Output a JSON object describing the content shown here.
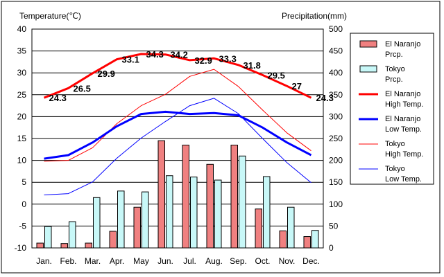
{
  "chart_data": {
    "type": "bar+line",
    "categories": [
      "Jan.",
      "Feb.",
      "Mar.",
      "Apr.",
      "May",
      "Jun.",
      "Jul.",
      "Aug.",
      "Sep.",
      "Oct.",
      "Nov.",
      "Dec."
    ],
    "left_axis": {
      "label": "Temperature(℃)",
      "range": [
        -10,
        40
      ],
      "ticks": [
        -10,
        -5,
        0,
        5,
        10,
        15,
        20,
        25,
        30,
        35,
        40
      ]
    },
    "right_axis": {
      "label": "Precipitation(mm)",
      "range": [
        0,
        500
      ],
      "ticks": [
        0,
        50,
        100,
        150,
        200,
        250,
        300,
        350,
        400,
        450,
        500
      ]
    },
    "grid": "horizontal",
    "bar_series": [
      {
        "name": "El Naranjo Prcp.",
        "axis": "right",
        "color": "#f08080",
        "values": [
          11,
          10,
          11,
          38,
          93,
          245,
          235,
          191,
          235,
          89,
          39,
          26
        ]
      },
      {
        "name": "Tokyo Prcp.",
        "axis": "right",
        "color": "#c8f8f8",
        "values": [
          49,
          60,
          115,
          130,
          128,
          165,
          162,
          155,
          210,
          163,
          93,
          40
        ]
      }
    ],
    "line_series": [
      {
        "name": "El Naranjo High Temp.",
        "axis": "left",
        "color": "#ff0000",
        "width": 3,
        "values": [
          24.3,
          26.5,
          29.9,
          33.1,
          34.3,
          34.2,
          32.9,
          33.3,
          31.8,
          29.5,
          27,
          24.3
        ]
      },
      {
        "name": "El Naranjo Low Temp.",
        "axis": "left",
        "color": "#0000ff",
        "width": 3,
        "values": [
          10.4,
          11.2,
          14.1,
          17.8,
          20.6,
          21.1,
          20.6,
          20.8,
          20.3,
          17.5,
          14.1,
          11.2
        ]
      },
      {
        "name": "Tokyo High Temp.",
        "axis": "left",
        "color": "#ff0000",
        "width": 1,
        "values": [
          9.8,
          10.0,
          12.9,
          18.4,
          22.5,
          25.1,
          29.2,
          30.8,
          26.9,
          21.5,
          16.3,
          12.2
        ]
      },
      {
        "name": "Tokyo Low Temp.",
        "axis": "left",
        "color": "#0000ff",
        "width": 1,
        "values": [
          2.1,
          2.4,
          5.1,
          10.5,
          15.1,
          18.9,
          22.5,
          24.2,
          20.7,
          15.0,
          9.5,
          4.9
        ]
      }
    ],
    "data_labels": [
      "24.3",
      "26.5",
      "29.9",
      "33.1",
      "34.3",
      "34.2",
      "32.9",
      "33.3",
      "31.8",
      "29.5",
      "27",
      "24.3"
    ],
    "legend": {
      "position": "right",
      "items": [
        {
          "kind": "bar",
          "color": "#f08080",
          "line1": "El Naranjo",
          "line2": "Prcp."
        },
        {
          "kind": "bar",
          "color": "#c8f8f8",
          "line1": "Tokyo",
          "line2": "Prcp."
        },
        {
          "kind": "line",
          "color": "#ff0000",
          "width": 3,
          "line1": "El Naranjo",
          "line2": "High Temp."
        },
        {
          "kind": "line",
          "color": "#0000ff",
          "width": 3,
          "line1": "El Naranjo",
          "line2": "Low Temp."
        },
        {
          "kind": "line",
          "color": "#ff0000",
          "width": 1,
          "line1": "Tokyo",
          "line2": "High Temp."
        },
        {
          "kind": "line",
          "color": "#0000ff",
          "width": 1,
          "line1": "Tokyo",
          "line2": "Low Temp."
        }
      ]
    },
    "colors": {
      "plot_bg": "#ffffff",
      "grid": "#000000",
      "outer_border": "#000000"
    }
  }
}
